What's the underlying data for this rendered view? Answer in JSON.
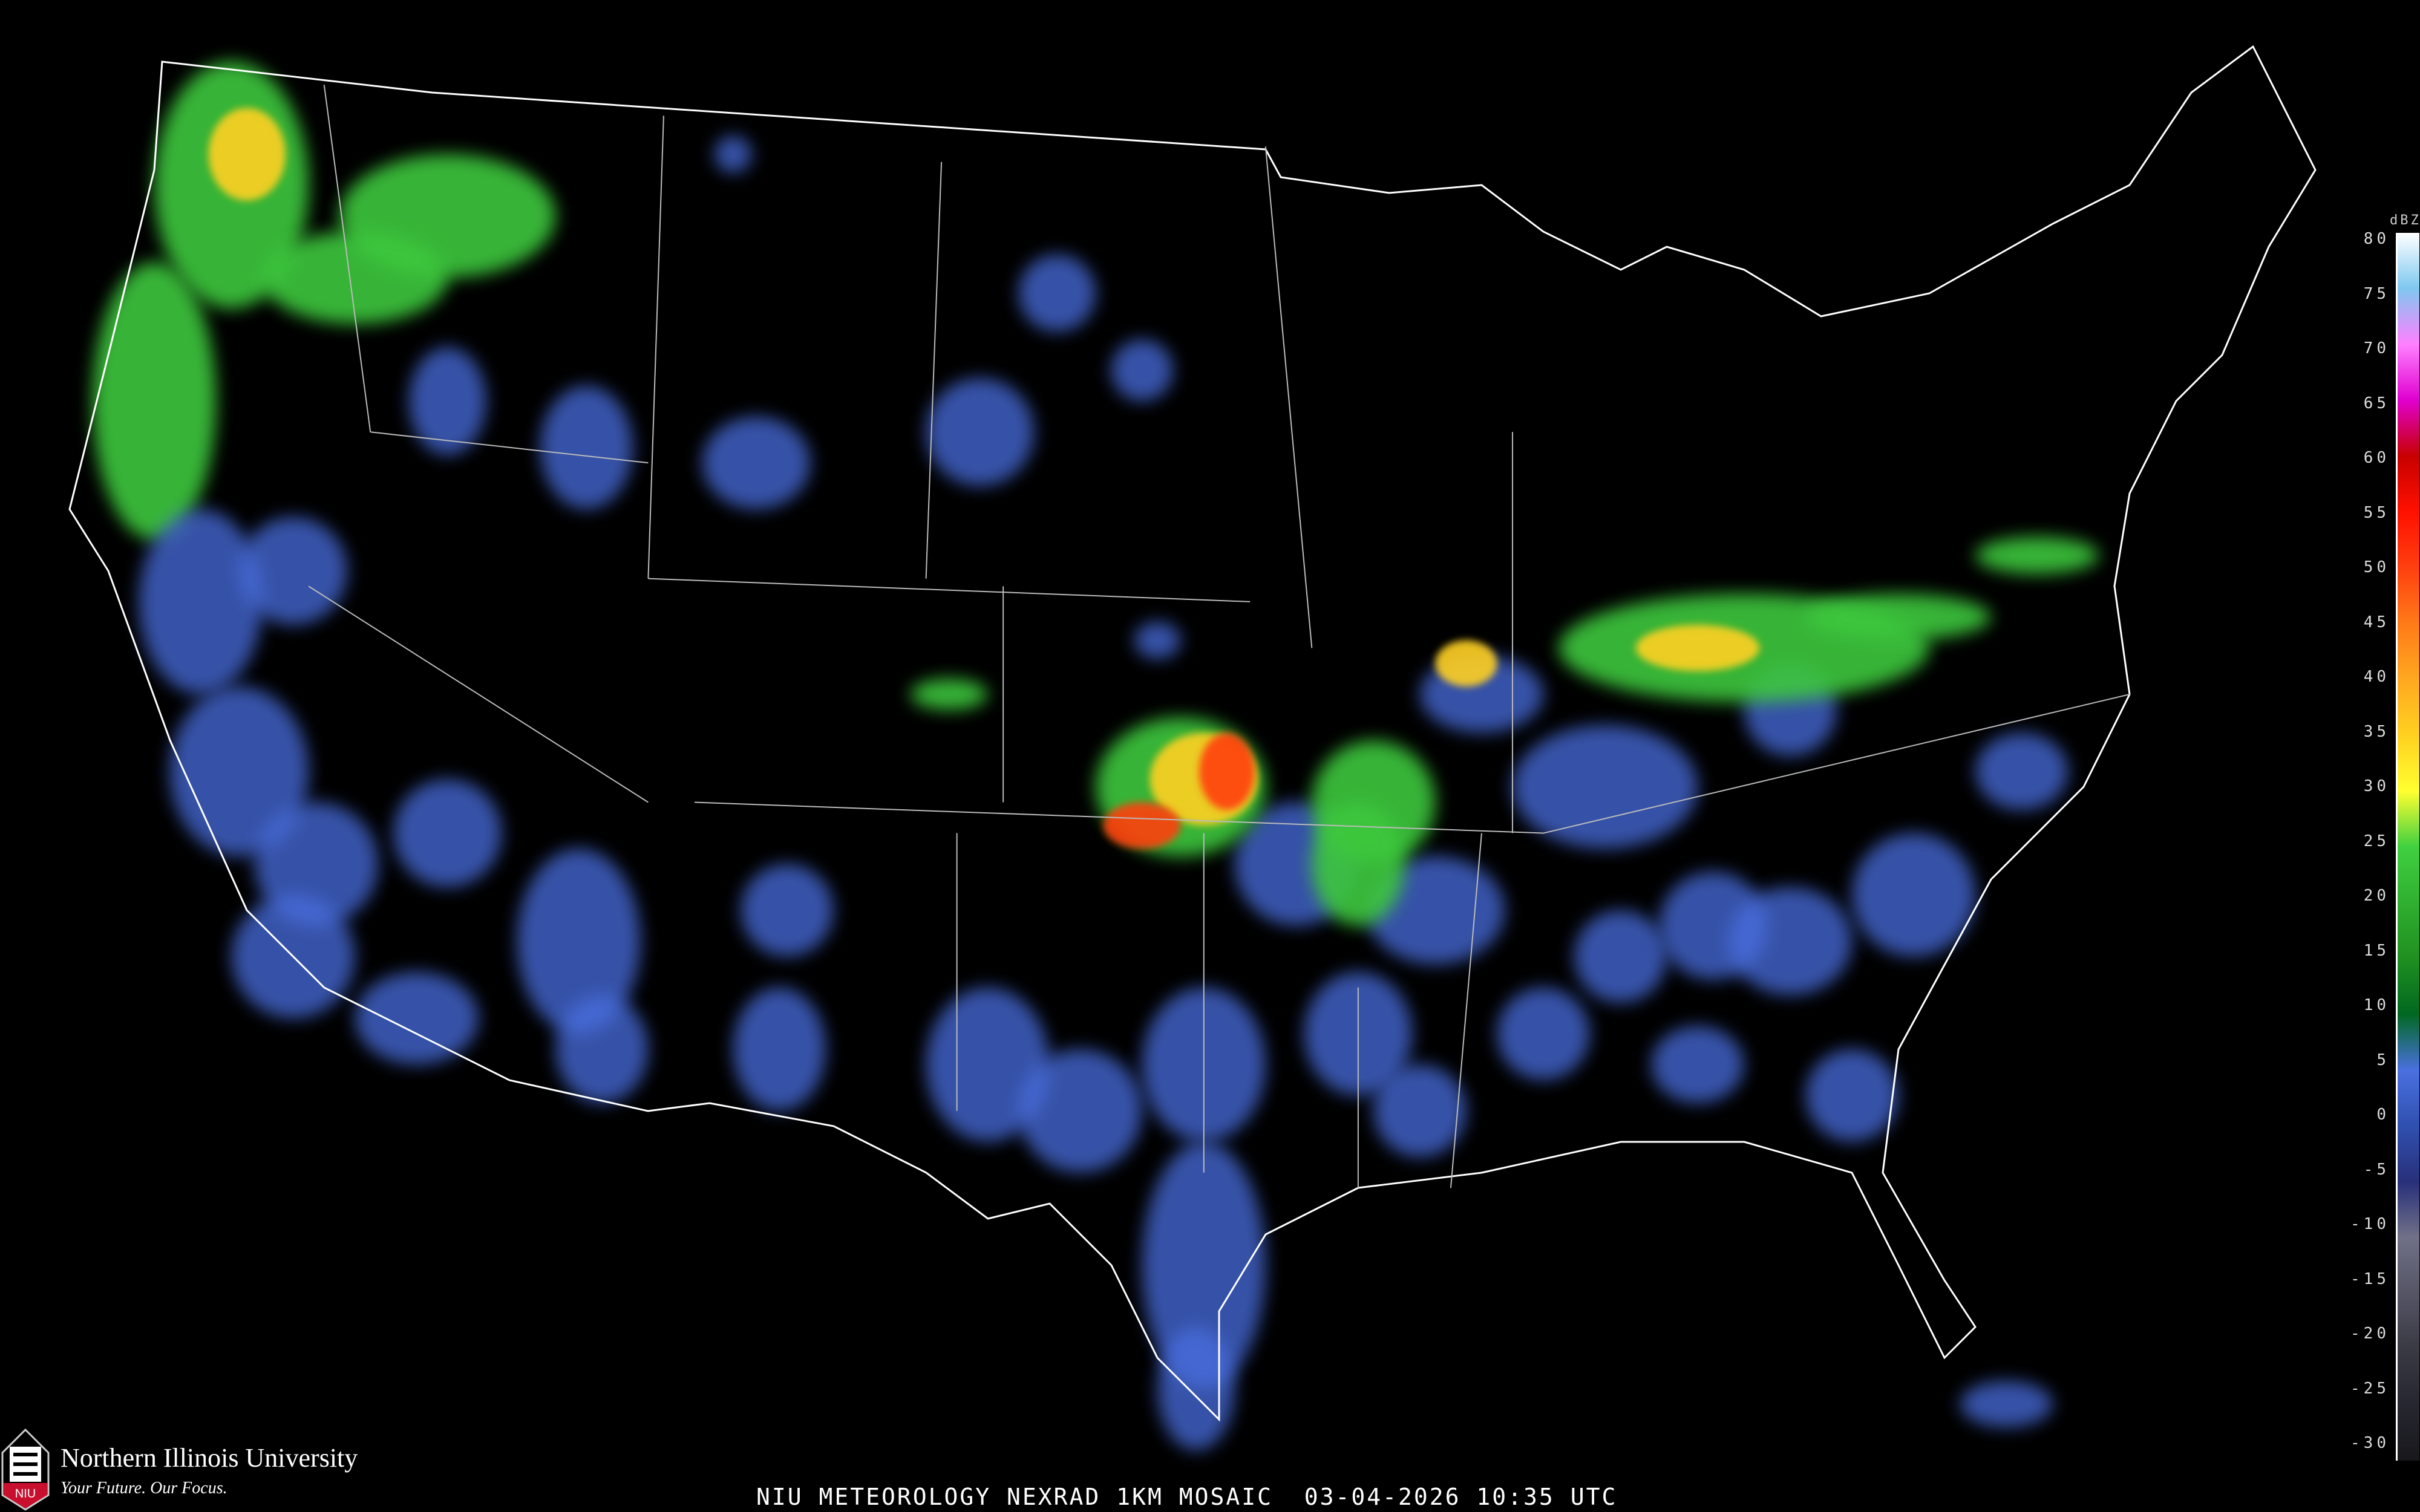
{
  "title": "NIU METEOROLOGY NEXRAD 1KM MOSAIC",
  "date": "03-04-2026",
  "time": "10:35 UTC",
  "logo": {
    "name": "Northern Illinois University",
    "tagline": "Your Future. Our Focus.",
    "mark": "NIU"
  },
  "legend": {
    "unit": "dBZ",
    "labels": [
      "80",
      "75",
      "70",
      "65",
      "60",
      "55",
      "50",
      "45",
      "40",
      "35",
      "30",
      "25",
      "20",
      "15",
      "10",
      "5",
      "0",
      "-5",
      "-10",
      "-15",
      "-20",
      "-25",
      "-30"
    ],
    "colors": {
      "80": "#ffffff",
      "75": "#7fc8f0",
      "70": "#ff80ff",
      "65": "#e000d0",
      "60": "#c80000",
      "55": "#ff1000",
      "50": "#ff4010",
      "45": "#ff7a18",
      "40": "#ffa820",
      "35": "#ffd020",
      "30": "#ffff30",
      "25": "#40d040",
      "20": "#30b030",
      "15": "#209020",
      "10": "#006820",
      "5": "#4a70e0",
      "0": "#3050b0",
      "-5": "#28307a",
      "-10": "#707088",
      "-15": "#555566",
      "-20": "#3a3a44",
      "-25": "#262630",
      "-30": "#18181c"
    }
  },
  "colors": {
    "background": "#000000",
    "borders": "#ffffff",
    "roads": "#8a4a20",
    "light_echo": "#4a6ee0",
    "moderate_echo": "#3cc83c",
    "heavy_echo": "#ffd020",
    "intense_echo": "#ff4010"
  }
}
